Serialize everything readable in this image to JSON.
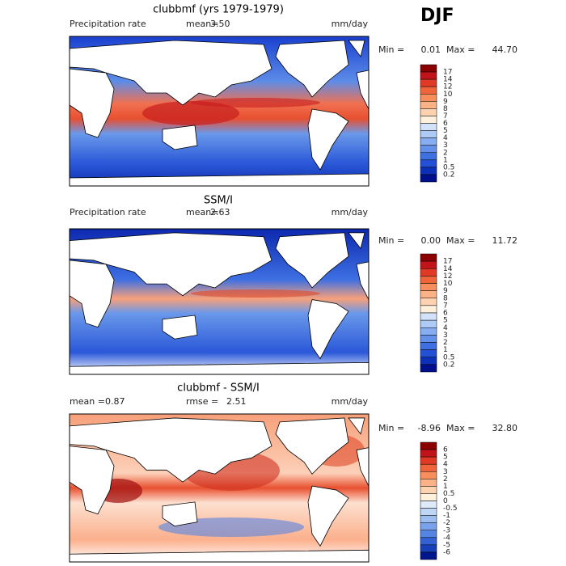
{
  "season": "DJF",
  "panels": [
    {
      "title": "clubbmf (yrs 1979-1979)",
      "left_label": "Precipitation rate",
      "stat1_label": "mean=",
      "stat1_value": "3.50",
      "units": "mm/day",
      "min_label": "Min =",
      "min": "0.01",
      "max_label": "Max =",
      "max": "44.70",
      "colorbar": {
        "labels": [
          "17",
          "14",
          "12",
          "10",
          "9",
          "8",
          "7",
          "6",
          "5",
          "4",
          "3",
          "2",
          "1",
          "0.5",
          "0.2"
        ],
        "colors": [
          "#8b0000",
          "#c0141a",
          "#e03a26",
          "#f0643c",
          "#f78e5e",
          "#fbb286",
          "#fdd2b0",
          "#fff0dc",
          "#d2e2fa",
          "#aecbf5",
          "#86aef0",
          "#6290ea",
          "#3e70e2",
          "#2450d6",
          "#0c30b8",
          "#00108c"
        ]
      }
    },
    {
      "title": "SSM/I",
      "left_label": "Precipitation rate",
      "stat1_label": "mean=",
      "stat1_value": "2.63",
      "units": "mm/day",
      "min_label": "Min =",
      "min": "0.00",
      "max_label": "Max =",
      "max": "11.72",
      "colorbar": {
        "labels": [
          "17",
          "14",
          "12",
          "10",
          "9",
          "8",
          "7",
          "6",
          "5",
          "4",
          "3",
          "2",
          "1",
          "0.5",
          "0.2"
        ],
        "colors": [
          "#8b0000",
          "#c0141a",
          "#e03a26",
          "#f0643c",
          "#f78e5e",
          "#fbb286",
          "#fdd2b0",
          "#fff0dc",
          "#d2e2fa",
          "#aecbf5",
          "#86aef0",
          "#6290ea",
          "#3e70e2",
          "#2450d6",
          "#0c30b8",
          "#00108c"
        ]
      }
    },
    {
      "title": "clubbmf - SSM/I",
      "stat1_label": "mean =",
      "stat1_value": "0.87",
      "stat2_label": "rmse =",
      "stat2_value": "2.51",
      "units": "mm/day",
      "min_label": "Min =",
      "min": "-8.96",
      "max_label": "Max =",
      "max": "32.80",
      "colorbar": {
        "labels": [
          "6",
          "5",
          "4",
          "3",
          "2",
          "1",
          "0.5",
          "0",
          "-0.5",
          "-1",
          "-2",
          "-3",
          "-4",
          "-5",
          "-6"
        ],
        "colors": [
          "#8b0000",
          "#c0141a",
          "#e03a26",
          "#f0643c",
          "#f78e5e",
          "#fbb286",
          "#fdd2b0",
          "#fff0dc",
          "#dfeaf8",
          "#c0d6f5",
          "#9cbdf0",
          "#7aa2ea",
          "#5684e2",
          "#3462d6",
          "#1840b8",
          "#00168c"
        ]
      }
    }
  ]
}
